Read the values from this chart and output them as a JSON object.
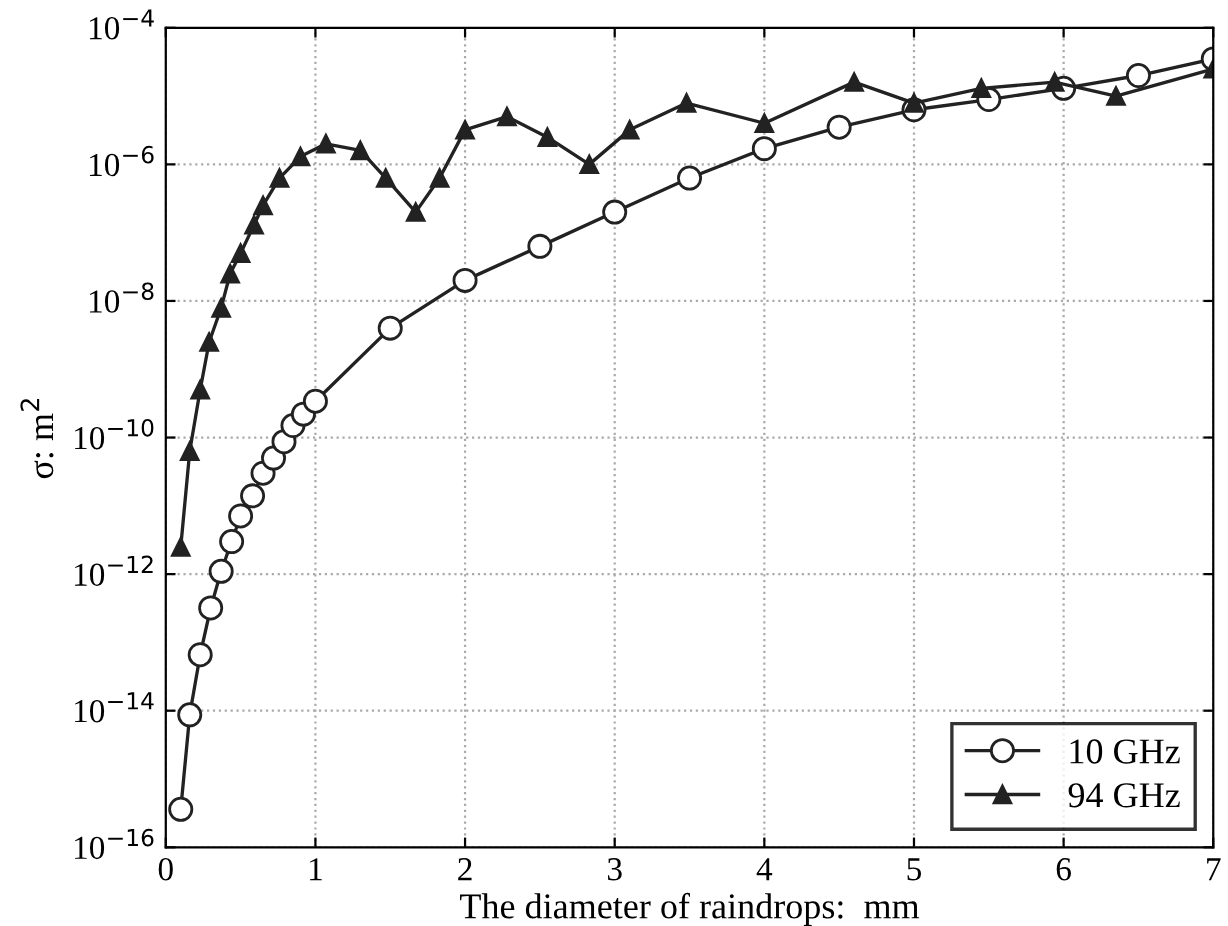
{
  "chart_data": {
    "type": "line",
    "xlabel": "The diameter of raindrops:  mm",
    "ylabel": "σ: m$^{2}$",
    "log": "y",
    "grid": true,
    "legend": "bottom right",
    "line_style": "solid",
    "xlim": [
      0,
      7
    ],
    "xticks": [
      0,
      1,
      2,
      3,
      4,
      5,
      6,
      7
    ],
    "ylim": [
      1e-16,
      0.0001
    ],
    "yticks": [
      {
        "value": 1e-16,
        "label": "10$^{−16}$"
      },
      {
        "value": 1e-14,
        "label": "10$^{−14}$"
      },
      {
        "value": 1e-12,
        "label": "10$^{−12}$"
      },
      {
        "value": 1e-10,
        "label": "10$^{−10}$"
      },
      {
        "value": 1e-08,
        "label": "10$^{−8}$"
      },
      {
        "value": 1e-06,
        "label": "10$^{−6}$"
      },
      {
        "value": 0.0001,
        "label": "10$^{−4}$"
      }
    ],
    "series": [
      {
        "name": "10 GHz",
        "color": "#222222",
        "marker": "circle",
        "x": [
          0.1,
          0.16,
          0.23,
          0.3,
          0.37,
          0.44,
          0.5,
          0.58,
          0.65,
          0.72,
          0.79,
          0.85,
          0.92,
          1.0,
          1.5,
          2.0,
          2.5,
          3.0,
          3.5,
          4.0,
          4.5,
          5.0,
          5.5,
          6.0,
          6.5,
          7.0
        ],
        "values": [
          3.6e-16,
          8.7e-15,
          6.6e-14,
          3.2e-13,
          1.1e-12,
          3e-12,
          7.1e-12,
          1.4e-11,
          3e-11,
          5e-11,
          8.7e-11,
          1.5e-10,
          2.2e-10,
          3.4e-10,
          4e-09,
          2e-08,
          6.3e-08,
          2e-07,
          6.3e-07,
          1.7e-06,
          3.5e-06,
          6.3e-06,
          8.9e-06,
          1.3e-05,
          2e-05,
          3.5e-05
        ]
      },
      {
        "name": "94 GHz",
        "color": "#222222",
        "marker": "triangle",
        "x": [
          0.1,
          0.16,
          0.23,
          0.29,
          0.37,
          0.43,
          0.5,
          0.59,
          0.65,
          0.76,
          0.9,
          1.07,
          1.3,
          1.47,
          1.67,
          1.83,
          2.0,
          2.28,
          2.55,
          2.83,
          3.1,
          3.48,
          4.0,
          4.6,
          5.0,
          5.45,
          5.94,
          6.35,
          7.0
        ],
        "values": [
          2.5e-12,
          6.3e-11,
          5e-10,
          2.5e-09,
          7.9e-09,
          2.5e-08,
          5e-08,
          1.3e-07,
          2.5e-07,
          6.3e-07,
          1.3e-06,
          2e-06,
          1.6e-06,
          6.3e-07,
          2e-07,
          6.3e-07,
          3.2e-06,
          5e-06,
          2.5e-06,
          1e-06,
          3.2e-06,
          7.9e-06,
          4e-06,
          1.6e-05,
          7.9e-06,
          1.3e-05,
          1.6e-05,
          1e-05,
          2.5e-05
        ]
      }
    ]
  }
}
